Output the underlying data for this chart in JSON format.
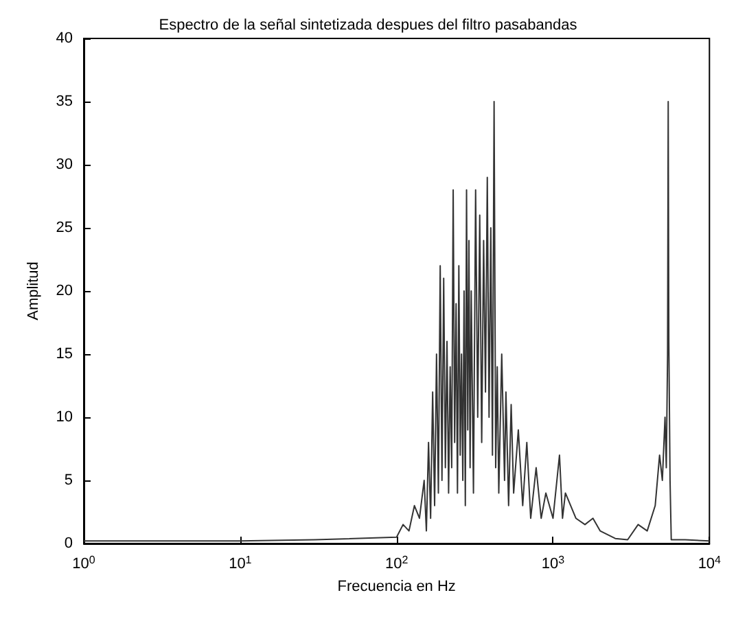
{
  "chart_data": {
    "type": "line",
    "title": "Espectro de la señal sintetizada despues del filtro pasabandas",
    "xlabel": "Frecuencia en Hz",
    "ylabel": "Amplitud",
    "log": "x",
    "grid": false,
    "marker": "none",
    "line_style": "solid",
    "xlim": [
      1,
      10000
    ],
    "xticks": [
      {
        "value": 1,
        "label": "10$^{0}$"
      },
      {
        "value": 10,
        "label": "10$^{1}$"
      },
      {
        "value": 100,
        "label": "10$^{2}$"
      },
      {
        "value": 1000,
        "label": "10$^{3}$"
      },
      {
        "value": 10000,
        "label": "10$^{4}$"
      }
    ],
    "ylim": [
      0,
      40
    ],
    "yticks": [
      0,
      5,
      10,
      15,
      20,
      25,
      30,
      35,
      40
    ],
    "series": [
      {
        "color": "#333333",
        "x": [
          1,
          3,
          10,
          30,
          100,
          110,
          120,
          130,
          140,
          150,
          155,
          160,
          165,
          170,
          175,
          180,
          185,
          190,
          195,
          200,
          205,
          210,
          215,
          220,
          225,
          230,
          235,
          240,
          245,
          250,
          255,
          260,
          265,
          270,
          275,
          280,
          285,
          290,
          295,
          300,
          310,
          320,
          330,
          340,
          350,
          360,
          370,
          380,
          390,
          400,
          410,
          420,
          430,
          440,
          450,
          470,
          490,
          500,
          520,
          540,
          560,
          600,
          640,
          680,
          720,
          780,
          840,
          900,
          1000,
          1100,
          1150,
          1200,
          1400,
          1600,
          1800,
          2000,
          2500,
          3000,
          3500,
          4000,
          4500,
          4800,
          5000,
          5200,
          5300,
          5400,
          5450,
          5500,
          5600,
          5700,
          7000,
          10000
        ],
        "values": [
          0.2,
          0.2,
          0.2,
          0.3,
          0.5,
          1.5,
          1,
          3,
          2,
          5,
          1,
          8,
          2,
          12,
          3,
          15,
          4,
          22,
          5,
          21,
          6,
          16,
          4,
          14,
          6,
          28,
          8,
          19,
          4,
          22,
          7,
          15,
          5,
          20,
          3,
          28,
          9,
          24,
          6,
          20,
          4,
          28,
          10,
          26,
          8,
          24,
          12,
          29,
          10,
          25,
          7,
          35,
          6,
          14,
          4,
          15,
          5,
          12,
          3,
          11,
          4,
          9,
          3,
          8,
          2,
          6,
          2,
          4,
          2,
          7,
          2,
          4,
          2,
          1.5,
          2,
          1,
          0.4,
          0.3,
          1.5,
          1,
          3,
          7,
          5,
          10,
          6,
          15,
          35,
          16,
          5,
          0.3,
          0.3,
          0.2
        ]
      }
    ]
  }
}
